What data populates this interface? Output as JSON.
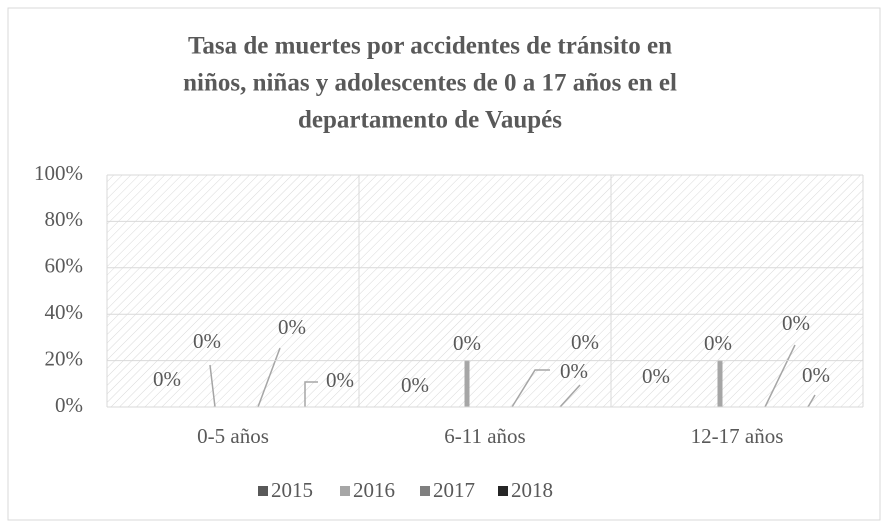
{
  "chart_data": {
    "type": "bar",
    "title": [
      "Tasa de muertes por accidentes de tránsito en",
      "niños, niñas y adolescentes de 0 a 17 años en el",
      "departamento de Vaupés"
    ],
    "categories": [
      "0-5 años",
      "6-11 años",
      "12-17 años"
    ],
    "series": [
      {
        "name": "2015",
        "color": "#595959",
        "values": [
          0,
          0,
          0
        ],
        "value_labels": [
          "0%",
          "0%",
          "0%"
        ]
      },
      {
        "name": "2016",
        "color": "#a6a6a6",
        "values": [
          0,
          0,
          0
        ],
        "value_labels": [
          "0%",
          "0%",
          "0%"
        ]
      },
      {
        "name": "2017",
        "color": "#7f7f7f",
        "values": [
          0,
          0,
          0
        ],
        "value_labels": [
          "0%",
          "0%",
          "0%"
        ]
      },
      {
        "name": "2018",
        "color": "#262626",
        "values": [
          0,
          0,
          0
        ],
        "value_labels": [
          "0%",
          "0%",
          "0%"
        ]
      }
    ],
    "ylim": [
      0,
      100
    ],
    "yticks": [
      {
        "value": 0,
        "label": "0%"
      },
      {
        "value": 20,
        "label": "20%"
      },
      {
        "value": 40,
        "label": "40%"
      },
      {
        "value": 60,
        "label": "60%"
      },
      {
        "value": 80,
        "label": "80%"
      },
      {
        "value": 100,
        "label": "100%"
      }
    ],
    "grid": true,
    "legend": "bottom"
  }
}
